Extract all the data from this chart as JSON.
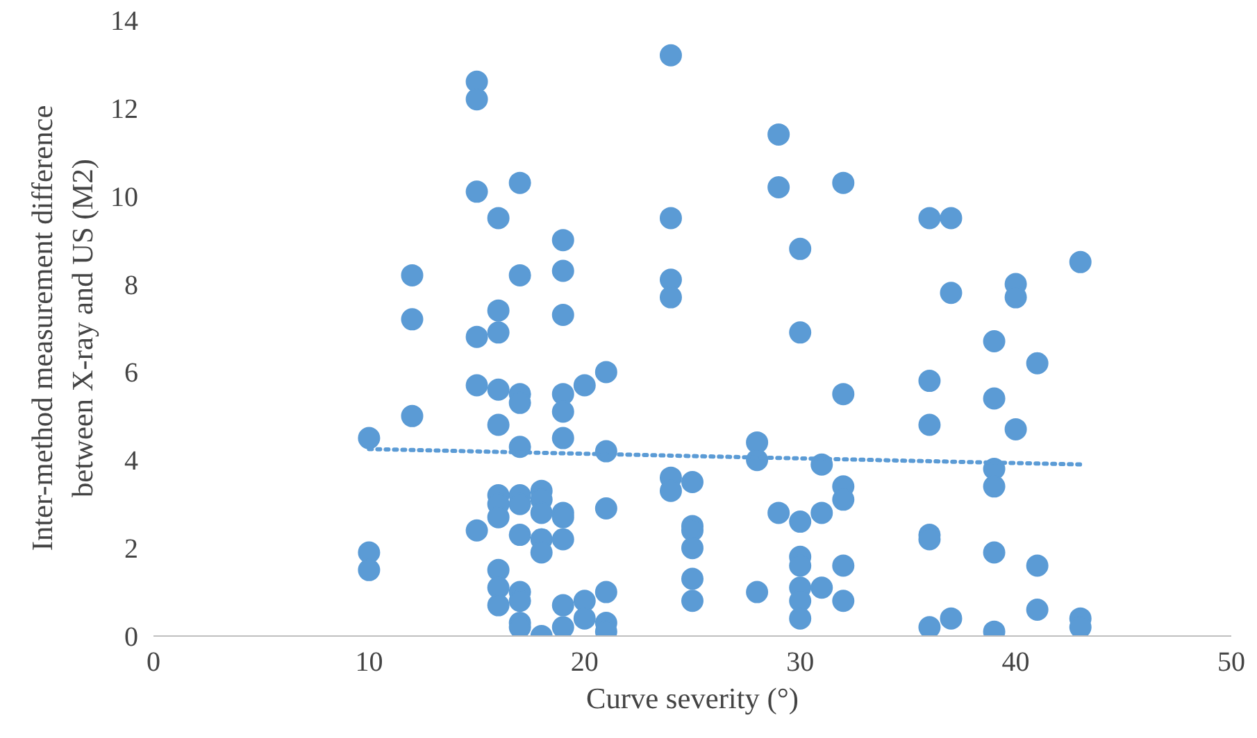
{
  "chart_data": {
    "type": "scatter",
    "xlabel": "Curve severity (°)",
    "ylabel": "Inter-method measurement difference\nbetween X-ray and US (M2)",
    "xlim": [
      0,
      50
    ],
    "xticks": [
      0,
      10,
      20,
      30,
      40,
      50
    ],
    "ylim": [
      0,
      14
    ],
    "yticks": [
      0,
      2,
      4,
      6,
      8,
      10,
      12,
      14
    ],
    "grid": false,
    "series": [
      {
        "type": "scatter",
        "color": "#5b9bd5",
        "marker": "circle",
        "x": [
          10,
          10,
          10,
          12,
          12,
          12,
          15,
          15,
          15,
          15,
          15,
          15,
          16,
          16,
          16,
          16,
          16,
          16,
          16,
          16,
          16,
          16,
          16,
          17,
          17,
          17,
          17,
          17,
          17,
          17,
          17,
          17,
          17,
          17,
          17,
          18,
          18,
          18,
          18,
          18,
          18,
          19,
          19,
          19,
          19,
          19,
          19,
          19,
          19,
          19,
          19,
          19,
          20,
          20,
          20,
          21,
          21,
          21,
          21,
          21,
          21,
          24,
          24,
          24,
          24,
          24,
          24,
          25,
          25,
          25,
          25,
          25,
          25,
          28,
          28,
          28,
          29,
          29,
          29,
          30,
          30,
          30,
          30,
          30,
          30,
          30,
          30,
          31,
          31,
          31,
          32,
          32,
          32,
          32,
          32,
          32,
          36,
          36,
          36,
          36,
          36,
          36,
          37,
          37,
          37,
          39,
          39,
          39,
          39,
          39,
          39,
          40,
          40,
          40,
          41,
          41,
          41,
          43,
          43,
          43
        ],
        "values": [
          4.5,
          1.9,
          1.5,
          8.2,
          7.2,
          5.0,
          12.6,
          12.2,
          10.1,
          6.8,
          5.7,
          2.4,
          9.5,
          7.4,
          6.9,
          5.6,
          4.8,
          3.2,
          3.0,
          2.7,
          1.5,
          1.1,
          0.7,
          10.3,
          8.2,
          5.5,
          5.3,
          4.3,
          3.2,
          3.0,
          2.3,
          1.0,
          0.8,
          0.3,
          0.2,
          3.3,
          3.1,
          2.8,
          2.2,
          1.9,
          0.0,
          9.0,
          8.3,
          7.3,
          5.5,
          5.1,
          4.5,
          2.8,
          2.7,
          2.2,
          0.7,
          0.2,
          5.7,
          0.8,
          0.4,
          6.0,
          4.2,
          2.9,
          1.0,
          0.3,
          0.1,
          13.2,
          9.5,
          8.1,
          7.7,
          3.6,
          3.3,
          3.5,
          2.5,
          2.4,
          2.0,
          1.3,
          0.8,
          4.4,
          4.0,
          1.0,
          11.4,
          10.2,
          2.8,
          8.8,
          6.9,
          2.6,
          1.8,
          1.6,
          1.1,
          0.8,
          0.4,
          3.9,
          2.8,
          1.1,
          10.3,
          5.5,
          3.4,
          3.1,
          1.6,
          0.8,
          9.5,
          5.8,
          4.8,
          2.3,
          2.2,
          0.2,
          9.5,
          7.8,
          0.4,
          6.7,
          5.4,
          3.8,
          3.4,
          1.9,
          0.1,
          8.0,
          7.7,
          4.7,
          6.2,
          1.6,
          0.6,
          8.5,
          0.4,
          0.2
        ]
      },
      {
        "type": "line",
        "color": "#5b9bd5",
        "marker": "none",
        "line_style": "dotted",
        "x": [
          10,
          43
        ],
        "values": [
          4.25,
          3.9
        ]
      }
    ]
  }
}
